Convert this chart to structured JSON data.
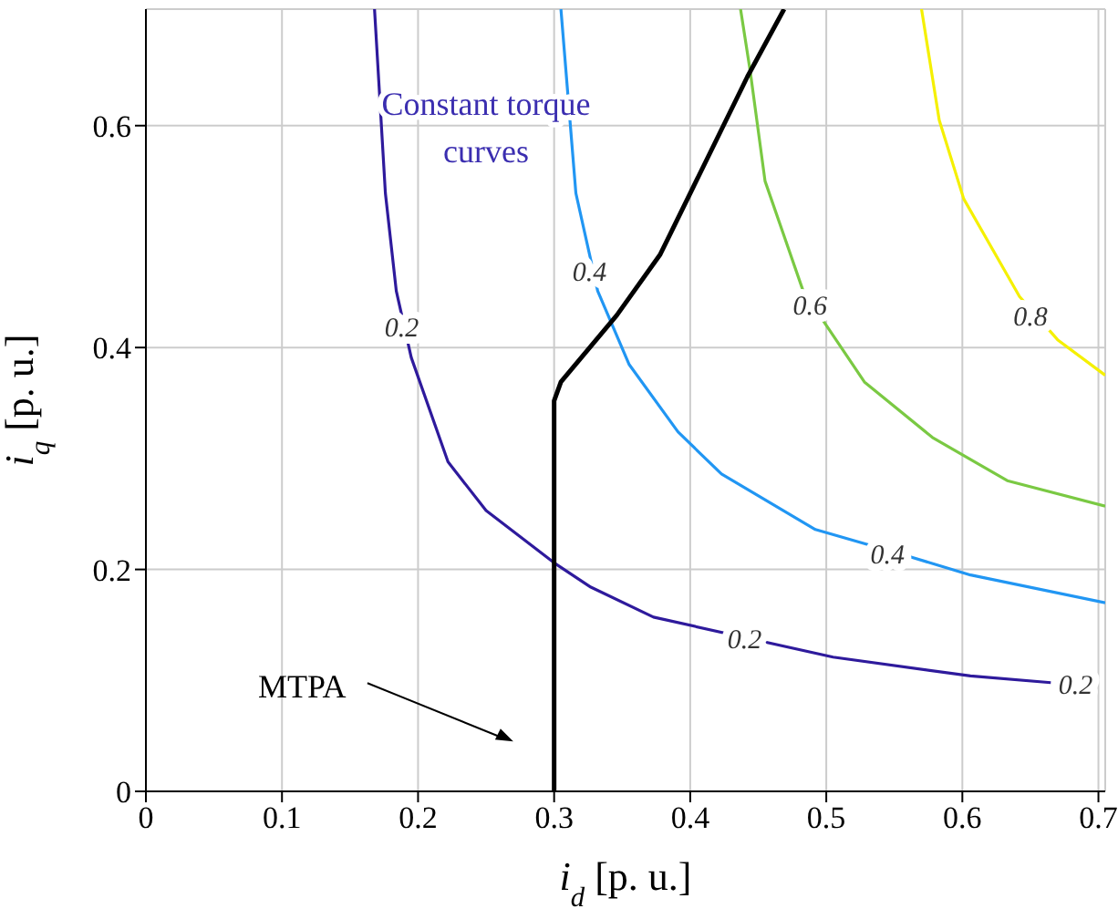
{
  "chart_data": {
    "type": "line",
    "xlabel": "i$_{d}$ [p. u.]",
    "ylabel": "i$_{q}$ [p. u.]",
    "xlim": [
      0,
      0.705
    ],
    "ylim": [
      0,
      0.705
    ],
    "xticks": [
      0,
      0.1,
      0.2,
      0.3,
      0.4,
      0.5,
      0.6,
      0.7
    ],
    "yticks": [
      0,
      0.2,
      0.4,
      0.6
    ],
    "grid": true,
    "marker": "none",
    "line_style": "solid",
    "series": [
      {
        "color": "#2e1a9c",
        "x": [
          0.168,
          0.176,
          0.184,
          0.195,
          0.222,
          0.25,
          0.3,
          0.327,
          0.373,
          0.505,
          0.606,
          0.665
        ],
        "values": [
          0.705,
          0.539,
          0.451,
          0.391,
          0.297,
          0.253,
          0.206,
          0.184,
          0.157,
          0.121,
          0.104,
          0.098
        ]
      },
      {
        "color": "#2196f3",
        "x": [
          0.305,
          0.316,
          0.332,
          0.355,
          0.391,
          0.423,
          0.492,
          0.56,
          0.606,
          0.705
        ],
        "values": [
          0.705,
          0.539,
          0.451,
          0.385,
          0.324,
          0.286,
          0.236,
          0.212,
          0.195,
          0.17
        ]
      },
      {
        "color": "#7ac943",
        "x": [
          0.437,
          0.444,
          0.455,
          0.483,
          0.528,
          0.578,
          0.633,
          0.705
        ],
        "values": [
          0.705,
          0.65,
          0.55,
          0.451,
          0.369,
          0.319,
          0.28,
          0.257
        ]
      },
      {
        "color": "#f5f000",
        "x": [
          0.57,
          0.583,
          0.601,
          0.642,
          0.67,
          0.705
        ],
        "values": [
          0.705,
          0.605,
          0.534,
          0.446,
          0.407,
          0.375
        ]
      },
      {
        "color": "#000000",
        "x": [
          0.3,
          0.3,
          0.305,
          0.346,
          0.378,
          0.442,
          0.469
        ],
        "values": [
          0,
          0.352,
          0.369,
          0.429,
          0.484,
          0.644,
          0.705
        ]
      }
    ],
    "annotations": [
      "Constant torque curves",
      "MTPA",
      {
        "text": "0.2",
        "x": 0.188,
        "y": 0.42
      },
      {
        "text": "0.2",
        "x": 0.44,
        "y": 0.139
      },
      {
        "text": "0.2",
        "x": 0.668,
        "y": 0.098
      },
      {
        "text": "0.4",
        "x": 0.326,
        "y": 0.47
      },
      {
        "text": "0.4",
        "x": 0.545,
        "y": 0.215
      },
      {
        "text": "0.6",
        "x": 0.488,
        "y": 0.44
      },
      {
        "text": "0.8",
        "x": 0.65,
        "y": 0.43
      }
    ]
  }
}
